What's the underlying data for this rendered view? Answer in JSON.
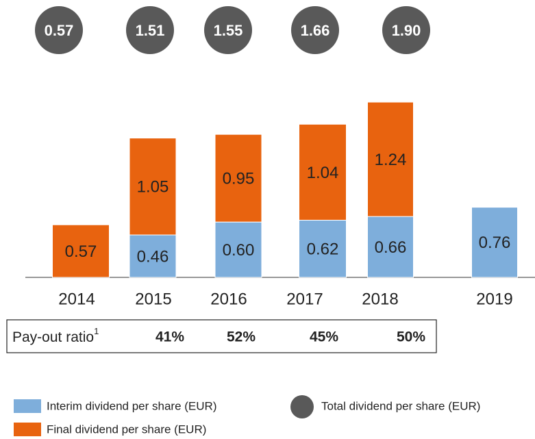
{
  "chart_data": {
    "type": "bar",
    "stacked": true,
    "categories": [
      "2014",
      "2015",
      "2016",
      "2017",
      "2018",
      "2019"
    ],
    "series": [
      {
        "name": "Interim dividend per share (EUR)",
        "color": "#7eaedb",
        "values": [
          null,
          0.46,
          0.6,
          0.62,
          0.66,
          0.76
        ],
        "value_labels": [
          null,
          "0.46",
          "0.60",
          "0.62",
          "0.66",
          "0.76"
        ]
      },
      {
        "name": "Final dividend per share (EUR)",
        "color": "#e8630f",
        "values": [
          0.57,
          1.05,
          0.95,
          1.04,
          1.24,
          null
        ],
        "value_labels": [
          "0.57",
          "1.05",
          "0.95",
          "1.04",
          "1.24",
          null
        ]
      }
    ],
    "totals": {
      "name": "Total dividend per share (EUR)",
      "color": "#595959",
      "values": [
        0.57,
        1.51,
        1.55,
        1.66,
        1.9,
        null
      ],
      "value_labels": [
        "0.57",
        "1.51",
        "1.55",
        "1.66",
        "1.90",
        null
      ]
    },
    "payout_ratio": {
      "label": "Pay-out ratio",
      "footnote": "1",
      "values": [
        null,
        "41%",
        "52%",
        "45%",
        "50%",
        null
      ]
    }
  }
}
